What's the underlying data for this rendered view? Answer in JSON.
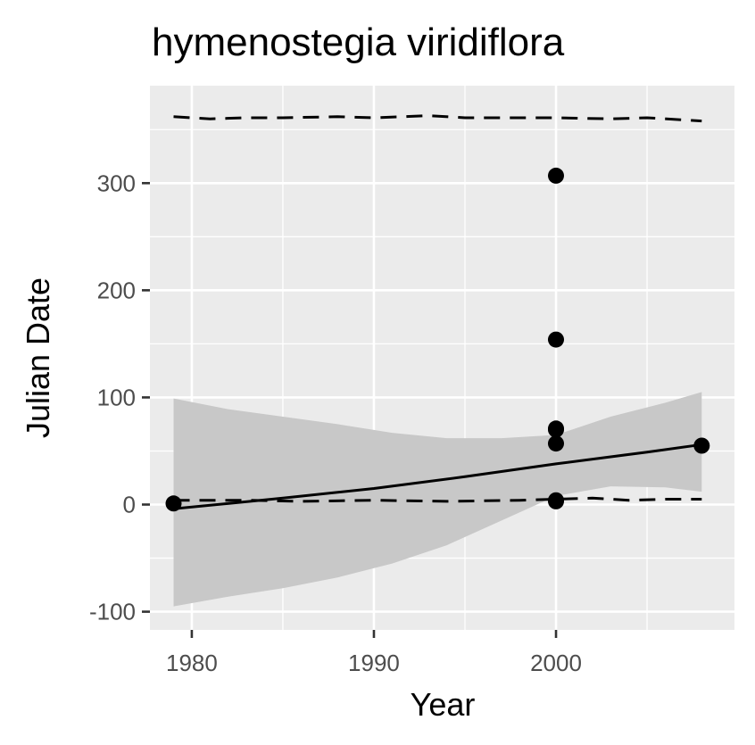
{
  "chart_data": {
    "type": "scatter",
    "title": "hymenostegia viridiflora",
    "xlabel": "Year",
    "ylabel": "Julian Date",
    "xlim": [
      1977.7,
      2009.8
    ],
    "ylim": [
      -117,
      391
    ],
    "x_ticks": [
      1980,
      1990,
      2000
    ],
    "x_tick_labels": [
      "1980",
      "1990",
      "2000"
    ],
    "y_ticks": [
      -100,
      0,
      100,
      200,
      300
    ],
    "y_tick_labels": [
      "-100",
      "0",
      "100",
      "200",
      "300"
    ],
    "grid": true,
    "legend": "none",
    "points": {
      "x": [
        1979,
        2000,
        2000,
        2000,
        2000,
        2000,
        2000,
        2000,
        2008
      ],
      "y": [
        1,
        307,
        154,
        71,
        70,
        57,
        4,
        3,
        55
      ]
    },
    "trend_line": {
      "x": [
        1979,
        1985,
        1990,
        1995,
        2000,
        2005,
        2008
      ],
      "y": [
        -4,
        6,
        15,
        26,
        38,
        49,
        56
      ]
    },
    "confidence_band": {
      "x": [
        1979,
        1982,
        1985,
        1988,
        1991,
        1994,
        1997,
        2000,
        2003,
        2006,
        2008
      ],
      "upper": [
        99,
        89,
        82,
        75,
        67,
        62,
        62,
        65,
        82,
        95,
        105
      ],
      "lower": [
        -95,
        -86,
        -78,
        -68,
        -55,
        -38,
        -15,
        8,
        17,
        16,
        12
      ]
    },
    "dashed_upper": {
      "x": [
        1979,
        1981,
        1983,
        1985,
        1988,
        1990,
        1993,
        1995,
        1998,
        2000,
        2003,
        2005,
        2008
      ],
      "y": [
        362,
        360,
        361,
        361,
        362,
        361,
        363,
        361,
        361,
        361,
        360,
        361,
        358
      ]
    },
    "dashed_lower": {
      "x": [
        1979,
        1983,
        1986,
        1990,
        1994,
        1998,
        2000,
        2002,
        2004,
        2006,
        2008
      ],
      "y": [
        4,
        4,
        3,
        4,
        3,
        4,
        5,
        6,
        4,
        5,
        5
      ]
    }
  }
}
